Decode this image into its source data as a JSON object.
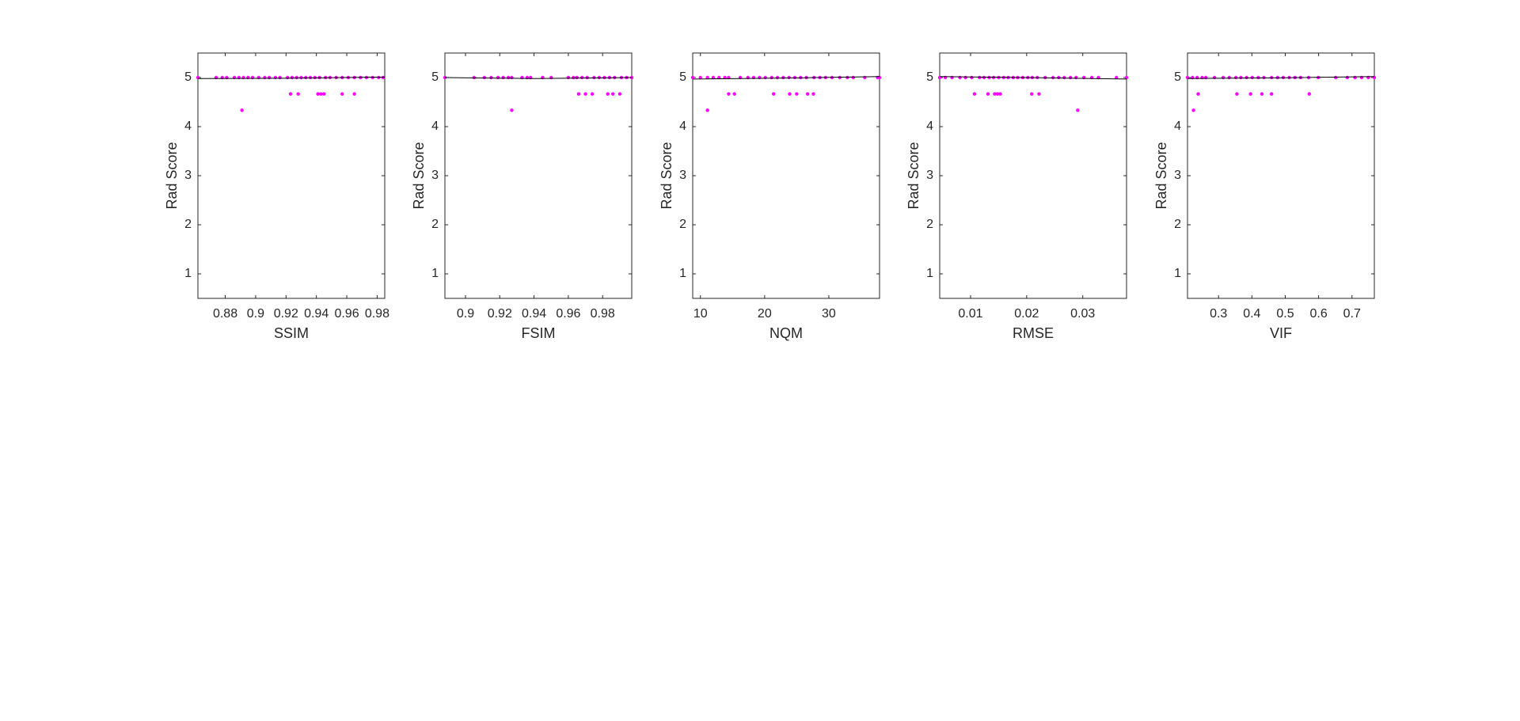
{
  "chart_data": [
    {
      "type": "scatter",
      "xlabel": "SSIM",
      "ylabel": "Rad Score",
      "xlim": [
        0.862,
        0.985
      ],
      "xticks": [
        0.88,
        0.9,
        0.92,
        0.94,
        0.96,
        0.98
      ],
      "ylim": [
        0.5,
        5.5
      ],
      "yticks": [
        1,
        2,
        3,
        4,
        5
      ],
      "series": [
        {
          "type": "scatter",
          "color": "#ff00ff",
          "x": [
            0.862,
            0.874,
            0.878,
            0.881,
            0.886,
            0.889,
            0.892,
            0.895,
            0.898,
            0.902,
            0.906,
            0.909,
            0.913,
            0.916,
            0.921,
            0.924,
            0.927,
            0.93,
            0.933,
            0.936,
            0.939,
            0.942,
            0.946,
            0.949,
            0.953,
            0.957,
            0.961,
            0.965,
            0.969,
            0.973,
            0.977,
            0.981,
            0.984,
            0.923,
            0.928,
            0.941,
            0.943,
            0.945,
            0.957,
            0.965,
            0.891
          ],
          "values": [
            5,
            5,
            5,
            5,
            5,
            5,
            5,
            5,
            5,
            5,
            5,
            5,
            5,
            5,
            5,
            5,
            5,
            5,
            5,
            5,
            5,
            5,
            5,
            5,
            5,
            5,
            5,
            5,
            5,
            5,
            5,
            5,
            5,
            4.667,
            4.667,
            4.667,
            4.667,
            4.667,
            4.667,
            4.667,
            4.333
          ]
        },
        {
          "type": "line",
          "color": "#000000",
          "x": [
            0.862,
            0.92,
            0.985
          ],
          "values": [
            4.98,
            4.985,
            5.01
          ]
        }
      ]
    },
    {
      "type": "scatter",
      "xlabel": "FSIM",
      "ylabel": "Rad Score",
      "xlim": [
        0.888,
        0.997
      ],
      "xticks": [
        0.9,
        0.92,
        0.94,
        0.96,
        0.98
      ],
      "ylim": [
        0.5,
        5.5
      ],
      "yticks": [
        1,
        2,
        3,
        4,
        5
      ],
      "series": [
        {
          "type": "scatter",
          "color": "#ff00ff",
          "x": [
            0.888,
            0.905,
            0.911,
            0.915,
            0.919,
            0.922,
            0.925,
            0.927,
            0.933,
            0.936,
            0.938,
            0.945,
            0.95,
            0.96,
            0.963,
            0.965,
            0.968,
            0.971,
            0.975,
            0.978,
            0.981,
            0.984,
            0.987,
            0.991,
            0.994,
            0.997,
            0.966,
            0.97,
            0.974,
            0.983,
            0.986,
            0.99,
            0.927
          ],
          "values": [
            5,
            5,
            5,
            5,
            5,
            5,
            5,
            5,
            5,
            5,
            5,
            5,
            5,
            5,
            5,
            5,
            5,
            5,
            5,
            5,
            5,
            5,
            5,
            5,
            5,
            5,
            4.667,
            4.667,
            4.667,
            4.667,
            4.667,
            4.667,
            4.333
          ]
        },
        {
          "type": "line",
          "color": "#000000",
          "x": [
            0.888,
            0.94,
            0.997
          ],
          "values": [
            5.0,
            4.98,
            5.0
          ]
        }
      ]
    },
    {
      "type": "scatter",
      "xlabel": "NQM",
      "ylabel": "Rad Score",
      "xlim": [
        8.8,
        37.9
      ],
      "xticks": [
        10,
        20,
        30
      ],
      "ylim": [
        0.5,
        5.5
      ],
      "yticks": [
        1,
        2,
        3,
        4,
        5
      ],
      "series": [
        {
          "type": "scatter",
          "color": "#ff00ff",
          "x": [
            8.8,
            10.0,
            11.1,
            12.0,
            12.9,
            13.8,
            14.4,
            16.2,
            17.4,
            18.3,
            19.2,
            20.1,
            21.1,
            22.0,
            22.9,
            23.8,
            24.7,
            25.6,
            26.5,
            27.7,
            28.6,
            29.5,
            30.5,
            31.7,
            32.9,
            33.8,
            35.6,
            37.6,
            37.9,
            14.4,
            15.3,
            21.4,
            23.9,
            25.0,
            26.7,
            27.6,
            11.1
          ],
          "values": [
            5,
            5,
            5,
            5,
            5,
            5,
            5,
            5,
            5,
            5,
            5,
            5,
            5,
            5,
            5,
            5,
            5,
            5,
            5,
            5,
            5,
            5,
            5,
            5,
            5,
            5,
            5,
            5,
            5,
            4.667,
            4.667,
            4.667,
            4.667,
            4.667,
            4.667,
            4.667,
            4.333
          ]
        },
        {
          "type": "line",
          "color": "#000000",
          "x": [
            8.8,
            23,
            37.9
          ],
          "values": [
            4.97,
            4.99,
            5.02
          ]
        }
      ]
    },
    {
      "type": "scatter",
      "xlabel": "RMSE",
      "ylabel": "Rad Score",
      "xlim": [
        0.0045,
        0.0378
      ],
      "xticks": [
        0.01,
        0.02,
        0.03
      ],
      "ylim": [
        0.5,
        5.5
      ],
      "yticks": [
        1,
        2,
        3,
        4,
        5
      ],
      "series": [
        {
          "type": "scatter",
          "color": "#ff00ff",
          "x": [
            0.0045,
            0.0055,
            0.0067,
            0.0081,
            0.0091,
            0.0102,
            0.0116,
            0.0124,
            0.0133,
            0.0141,
            0.015,
            0.0159,
            0.0167,
            0.0176,
            0.0184,
            0.0193,
            0.0202,
            0.021,
            0.0219,
            0.0233,
            0.0247,
            0.0257,
            0.0267,
            0.0278,
            0.0288,
            0.0302,
            0.0316,
            0.0328,
            0.036,
            0.0378,
            0.0107,
            0.0131,
            0.0143,
            0.0148,
            0.0153,
            0.0209,
            0.0222,
            0.0291
          ],
          "values": [
            5,
            5,
            5,
            5,
            5,
            5,
            5,
            5,
            5,
            5,
            5,
            5,
            5,
            5,
            5,
            5,
            5,
            5,
            5,
            5,
            5,
            5,
            5,
            5,
            5,
            5,
            5,
            5,
            5,
            5,
            4.667,
            4.667,
            4.667,
            4.667,
            4.667,
            4.667,
            4.667,
            4.333
          ]
        },
        {
          "type": "line",
          "color": "#000000",
          "x": [
            0.0045,
            0.02,
            0.0378
          ],
          "values": [
            5.02,
            5.0,
            4.97
          ]
        }
      ]
    },
    {
      "type": "scatter",
      "xlabel": "VIF",
      "ylabel": "Rad Score",
      "xlim": [
        0.207,
        0.767
      ],
      "xticks": [
        0.3,
        0.4,
        0.5,
        0.6,
        0.7
      ],
      "ylim": [
        0.5,
        5.5
      ],
      "yticks": [
        1,
        2,
        3,
        4,
        5
      ],
      "series": [
        {
          "type": "scatter",
          "color": "#ff00ff",
          "x": [
            0.207,
            0.222,
            0.236,
            0.251,
            0.262,
            0.288,
            0.314,
            0.332,
            0.352,
            0.367,
            0.384,
            0.401,
            0.419,
            0.436,
            0.459,
            0.477,
            0.494,
            0.512,
            0.529,
            0.546,
            0.57,
            0.599,
            0.651,
            0.686,
            0.709,
            0.729,
            0.749,
            0.767,
            0.239,
            0.355,
            0.396,
            0.43,
            0.459,
            0.572,
            0.225
          ],
          "values": [
            5,
            5,
            5,
            5,
            5,
            5,
            5,
            5,
            5,
            5,
            5,
            5,
            5,
            5,
            5,
            5,
            5,
            5,
            5,
            5,
            5,
            5,
            5,
            5,
            5,
            5,
            5,
            5,
            4.667,
            4.667,
            4.667,
            4.667,
            4.667,
            4.667,
            4.333
          ]
        },
        {
          "type": "line",
          "color": "#000000",
          "x": [
            0.207,
            0.5,
            0.767
          ],
          "values": [
            4.98,
            4.995,
            5.02
          ]
        }
      ]
    }
  ]
}
